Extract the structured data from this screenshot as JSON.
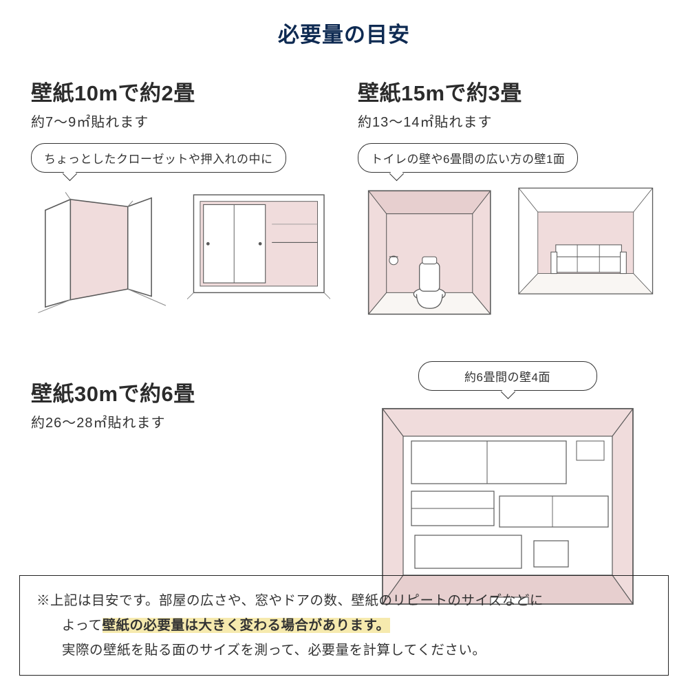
{
  "colors": {
    "title": "#0e2a52",
    "heading": "#2b2b2b",
    "body": "#333333",
    "wall_pink": "#f0dcdc",
    "wall_pink_dark": "#e7cfcf",
    "line": "#5a5a5a",
    "line_light": "#8a8a8a",
    "highlight_bg": "#f6eaae",
    "border": "#222222",
    "white": "#ffffff",
    "floor": "#f9f6f3"
  },
  "fontsize": {
    "main_title": 31,
    "size_title": 31,
    "size_sub": 20,
    "bubble": 17,
    "note": 19.5
  },
  "title": "必要量の目安",
  "sections": {
    "s10": {
      "heading": "壁紙10mで約2畳",
      "sub": "約7〜9㎡貼れます",
      "bubble": "ちょっとしたクローゼットや押入れの中に"
    },
    "s15": {
      "heading": "壁紙15mで約3畳",
      "sub": "約13〜14㎡貼れます",
      "bubble": "トイレの壁や6畳間の広い方の壁1面"
    },
    "s30": {
      "heading": "壁紙30mで約6畳",
      "sub": "約26〜28㎡貼れます",
      "bubble": "約6畳間の壁4面"
    }
  },
  "note": {
    "line1": "※上記は目安です。部屋の広さや、窓やドアの数、壁紙のリピートのサイズなどに",
    "line2a": "よって",
    "line2b": "壁紙の必要量は大きく変わる場合があります。",
    "line3": "実際の壁紙を貼る面のサイズを測って、必要量を計算してください。"
  }
}
